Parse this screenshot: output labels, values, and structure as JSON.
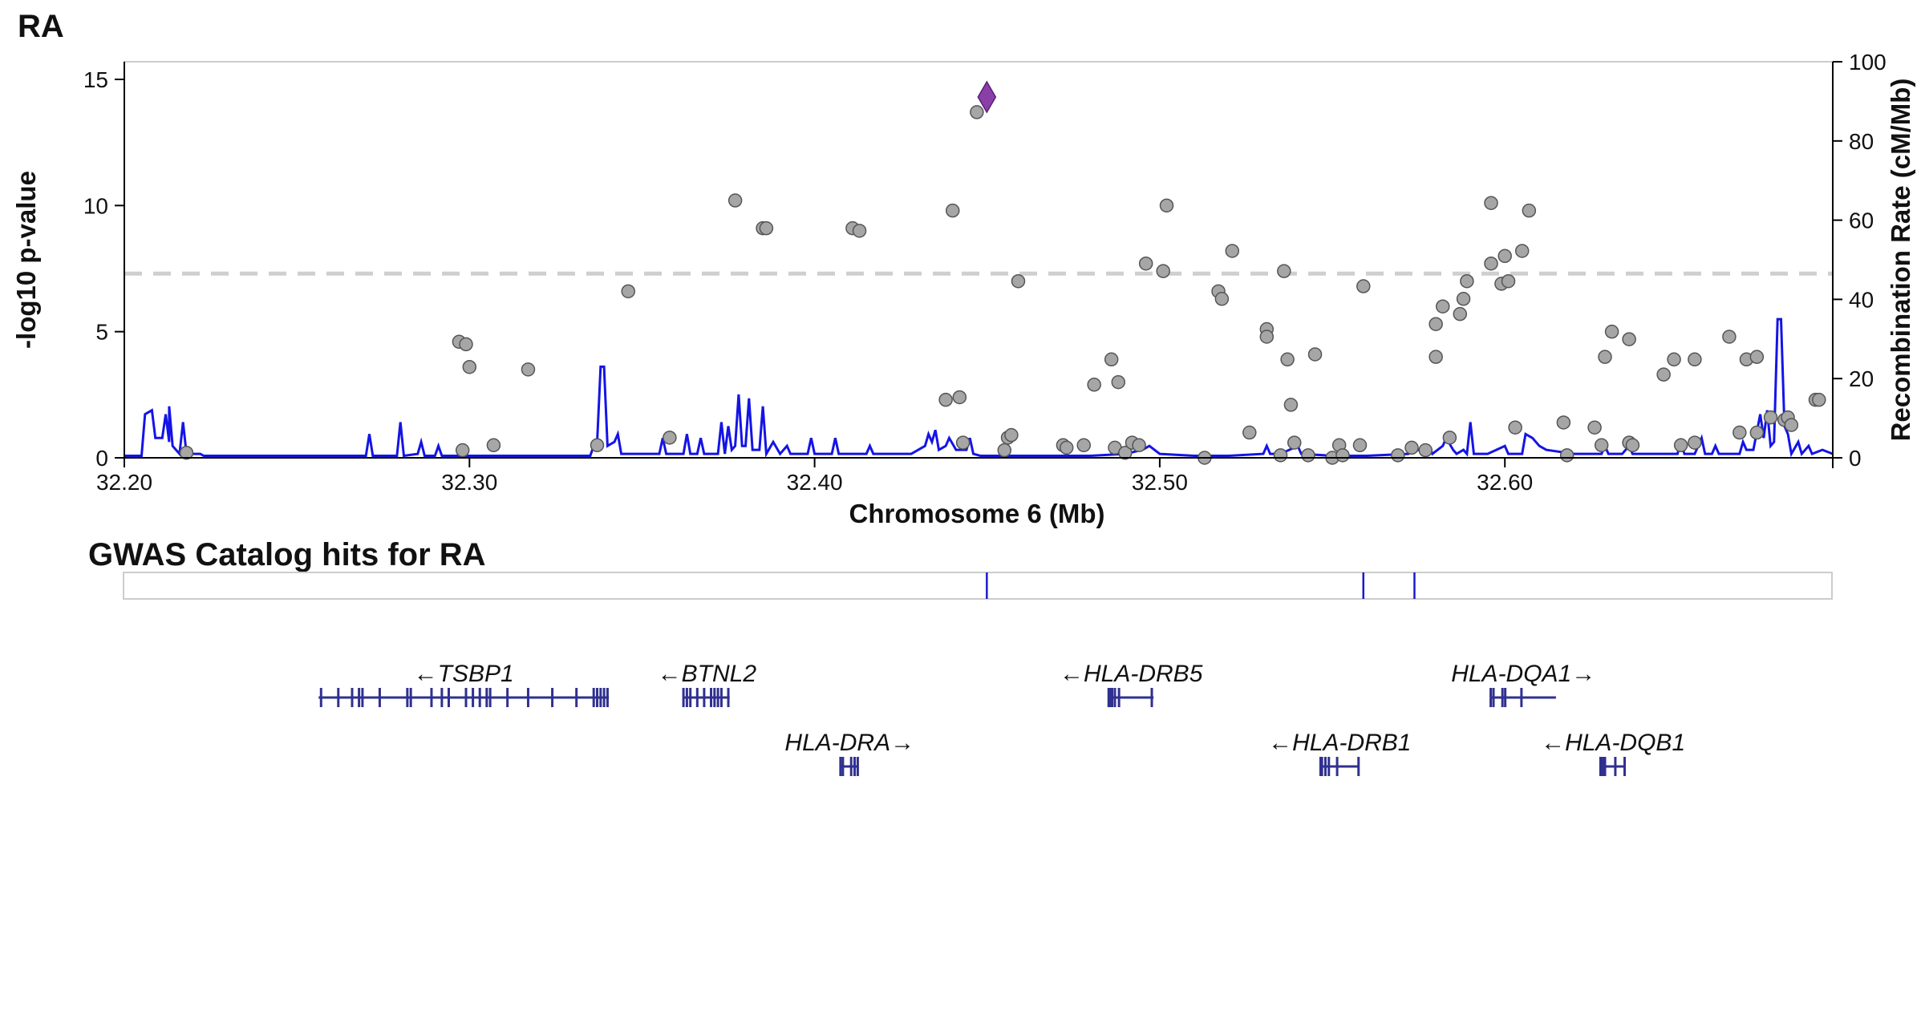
{
  "chart_data": {
    "type": "scatter",
    "title": "RA",
    "xlabel": "Chromosome 6 (Mb)",
    "ylabel": "-log10 p-value",
    "y2label": "Recombination Rate (cM/Mb)",
    "xlim": [
      32.2,
      32.695
    ],
    "ylim": [
      0,
      15.7
    ],
    "y2lim": [
      0,
      100
    ],
    "xticks": [
      "32.20",
      "32.30",
      "32.40",
      "32.50",
      "32.60"
    ],
    "xtick_values": [
      32.2,
      32.3,
      32.4,
      32.5,
      32.6
    ],
    "yticks": [
      "0",
      "5",
      "10",
      "15"
    ],
    "ytick_values": [
      0,
      5,
      10,
      15
    ],
    "y2ticks": [
      "0",
      "20",
      "40",
      "60",
      "80",
      "100"
    ],
    "y2tick_values": [
      0,
      20,
      40,
      60,
      80,
      100
    ],
    "significance_line": 7.3,
    "colors": {
      "point": "#a6a6a6",
      "point_stroke": "#555555",
      "lead": "#8a3fa8",
      "recomb": "#1414e6",
      "threshold": "#cfcfcf",
      "gwas_hit": "#1a1ad0",
      "gene": "#303090"
    },
    "lead_snp": {
      "x": 32.4499,
      "y": 14.3
    },
    "points": [
      {
        "x": 32.218,
        "y": 0.2
      },
      {
        "x": 32.297,
        "y": 4.6
      },
      {
        "x": 32.299,
        "y": 4.5
      },
      {
        "x": 32.3,
        "y": 3.6
      },
      {
        "x": 32.298,
        "y": 0.3
      },
      {
        "x": 32.307,
        "y": 0.5
      },
      {
        "x": 32.317,
        "y": 3.5
      },
      {
        "x": 32.337,
        "y": 0.5
      },
      {
        "x": 32.346,
        "y": 6.6
      },
      {
        "x": 32.358,
        "y": 0.8
      },
      {
        "x": 32.377,
        "y": 10.2
      },
      {
        "x": 32.385,
        "y": 9.1
      },
      {
        "x": 32.386,
        "y": 9.1
      },
      {
        "x": 32.411,
        "y": 9.1
      },
      {
        "x": 32.413,
        "y": 9.0
      },
      {
        "x": 32.438,
        "y": 2.3
      },
      {
        "x": 32.44,
        "y": 9.8
      },
      {
        "x": 32.442,
        "y": 2.4
      },
      {
        "x": 32.443,
        "y": 0.6
      },
      {
        "x": 32.447,
        "y": 13.7
      },
      {
        "x": 32.455,
        "y": 0.3
      },
      {
        "x": 32.456,
        "y": 0.8
      },
      {
        "x": 32.457,
        "y": 0.9
      },
      {
        "x": 32.459,
        "y": 7.0
      },
      {
        "x": 32.472,
        "y": 0.5
      },
      {
        "x": 32.473,
        "y": 0.4
      },
      {
        "x": 32.478,
        "y": 0.5
      },
      {
        "x": 32.481,
        "y": 2.9
      },
      {
        "x": 32.486,
        "y": 3.9
      },
      {
        "x": 32.487,
        "y": 0.4
      },
      {
        "x": 32.488,
        "y": 3.0
      },
      {
        "x": 32.49,
        "y": 0.2
      },
      {
        "x": 32.492,
        "y": 0.6
      },
      {
        "x": 32.494,
        "y": 0.5
      },
      {
        "x": 32.496,
        "y": 7.7
      },
      {
        "x": 32.501,
        "y": 7.4
      },
      {
        "x": 32.502,
        "y": 10.0
      },
      {
        "x": 32.513,
        "y": 0.0
      },
      {
        "x": 32.517,
        "y": 6.6
      },
      {
        "x": 32.518,
        "y": 6.3
      },
      {
        "x": 32.521,
        "y": 8.2
      },
      {
        "x": 32.526,
        "y": 1.0
      },
      {
        "x": 32.531,
        "y": 5.1
      },
      {
        "x": 32.531,
        "y": 4.8
      },
      {
        "x": 32.535,
        "y": 0.1
      },
      {
        "x": 32.536,
        "y": 7.4
      },
      {
        "x": 32.537,
        "y": 3.9
      },
      {
        "x": 32.538,
        "y": 2.1
      },
      {
        "x": 32.539,
        "y": 0.6
      },
      {
        "x": 32.543,
        "y": 0.1
      },
      {
        "x": 32.545,
        "y": 4.1
      },
      {
        "x": 32.55,
        "y": 0.0
      },
      {
        "x": 32.552,
        "y": 0.5
      },
      {
        "x": 32.553,
        "y": 0.1
      },
      {
        "x": 32.558,
        "y": 0.5
      },
      {
        "x": 32.559,
        "y": 6.8
      },
      {
        "x": 32.569,
        "y": 0.1
      },
      {
        "x": 32.573,
        "y": 0.4
      },
      {
        "x": 32.577,
        "y": 0.3
      },
      {
        "x": 32.58,
        "y": 5.3
      },
      {
        "x": 32.58,
        "y": 4.0
      },
      {
        "x": 32.582,
        "y": 6.0
      },
      {
        "x": 32.584,
        "y": 0.8
      },
      {
        "x": 32.587,
        "y": 5.7
      },
      {
        "x": 32.588,
        "y": 6.3
      },
      {
        "x": 32.589,
        "y": 7.0
      },
      {
        "x": 32.596,
        "y": 10.1
      },
      {
        "x": 32.596,
        "y": 7.7
      },
      {
        "x": 32.599,
        "y": 6.9
      },
      {
        "x": 32.6,
        "y": 8.0
      },
      {
        "x": 32.601,
        "y": 7.0
      },
      {
        "x": 32.603,
        "y": 1.2
      },
      {
        "x": 32.605,
        "y": 8.2
      },
      {
        "x": 32.607,
        "y": 9.8
      },
      {
        "x": 32.617,
        "y": 1.4
      },
      {
        "x": 32.618,
        "y": 0.1
      },
      {
        "x": 32.626,
        "y": 1.2
      },
      {
        "x": 32.628,
        "y": 0.5
      },
      {
        "x": 32.629,
        "y": 4.0
      },
      {
        "x": 32.631,
        "y": 5.0
      },
      {
        "x": 32.636,
        "y": 0.6
      },
      {
        "x": 32.637,
        "y": 0.5
      },
      {
        "x": 32.636,
        "y": 4.7
      },
      {
        "x": 32.646,
        "y": 3.3
      },
      {
        "x": 32.649,
        "y": 3.9
      },
      {
        "x": 32.651,
        "y": 0.5
      },
      {
        "x": 32.655,
        "y": 3.9
      },
      {
        "x": 32.655,
        "y": 0.6
      },
      {
        "x": 32.665,
        "y": 4.8
      },
      {
        "x": 32.668,
        "y": 1.0
      },
      {
        "x": 32.67,
        "y": 3.9
      },
      {
        "x": 32.673,
        "y": 4.0
      },
      {
        "x": 32.673,
        "y": 1.0
      },
      {
        "x": 32.677,
        "y": 1.6
      },
      {
        "x": 32.681,
        "y": 1.5
      },
      {
        "x": 32.682,
        "y": 1.6
      },
      {
        "x": 32.683,
        "y": 1.3
      },
      {
        "x": 32.69,
        "y": 2.3
      },
      {
        "x": 32.691,
        "y": 2.3
      }
    ],
    "recomb_rate": [
      [
        32.2,
        0.5
      ],
      [
        32.205,
        0.5
      ],
      [
        32.206,
        11
      ],
      [
        32.208,
        12
      ],
      [
        32.209,
        5
      ],
      [
        32.211,
        5
      ],
      [
        32.212,
        11
      ],
      [
        32.213,
        4
      ],
      [
        32.213,
        13
      ],
      [
        32.214,
        3
      ],
      [
        32.216,
        1
      ],
      [
        32.217,
        9
      ],
      [
        32.218,
        1
      ],
      [
        32.222,
        1
      ],
      [
        32.223,
        0.5
      ],
      [
        32.24,
        0.5
      ],
      [
        32.27,
        0.5
      ],
      [
        32.271,
        6
      ],
      [
        32.272,
        0.5
      ],
      [
        32.279,
        0.5
      ],
      [
        32.28,
        9
      ],
      [
        32.281,
        0.5
      ],
      [
        32.285,
        1
      ],
      [
        32.286,
        4
      ],
      [
        32.287,
        0.5
      ],
      [
        32.29,
        0.5
      ],
      [
        32.291,
        3
      ],
      [
        32.292,
        0.5
      ],
      [
        32.31,
        0.5
      ],
      [
        32.335,
        0.5
      ],
      [
        32.336,
        3
      ],
      [
        32.337,
        4
      ],
      [
        32.338,
        23
      ],
      [
        32.339,
        23
      ],
      [
        32.34,
        3
      ],
      [
        32.342,
        4
      ],
      [
        32.343,
        6
      ],
      [
        32.344,
        1
      ],
      [
        32.355,
        1
      ],
      [
        32.356,
        5
      ],
      [
        32.357,
        1
      ],
      [
        32.362,
        1
      ],
      [
        32.363,
        6
      ],
      [
        32.364,
        1
      ],
      [
        32.366,
        1
      ],
      [
        32.367,
        5
      ],
      [
        32.368,
        1
      ],
      [
        32.372,
        1
      ],
      [
        32.373,
        9
      ],
      [
        32.374,
        1
      ],
      [
        32.375,
        8
      ],
      [
        32.376,
        2
      ],
      [
        32.377,
        3
      ],
      [
        32.378,
        16
      ],
      [
        32.379,
        3
      ],
      [
        32.38,
        3
      ],
      [
        32.381,
        15
      ],
      [
        32.382,
        2
      ],
      [
        32.384,
        2
      ],
      [
        32.385,
        13
      ],
      [
        32.386,
        1
      ],
      [
        32.388,
        4
      ],
      [
        32.39,
        1
      ],
      [
        32.392,
        3
      ],
      [
        32.393,
        1
      ],
      [
        32.398,
        1
      ],
      [
        32.399,
        5
      ],
      [
        32.4,
        1
      ],
      [
        32.405,
        1
      ],
      [
        32.406,
        5
      ],
      [
        32.407,
        1
      ],
      [
        32.415,
        1
      ],
      [
        32.416,
        3
      ],
      [
        32.417,
        1
      ],
      [
        32.428,
        1
      ],
      [
        32.432,
        3
      ],
      [
        32.433,
        6
      ],
      [
        32.434,
        4
      ],
      [
        32.435,
        7
      ],
      [
        32.436,
        2
      ],
      [
        32.438,
        3
      ],
      [
        32.439,
        5
      ],
      [
        32.441,
        2
      ],
      [
        32.444,
        2
      ],
      [
        32.445,
        5
      ],
      [
        32.446,
        1
      ],
      [
        32.448,
        0.5
      ],
      [
        32.46,
        0.5
      ],
      [
        32.47,
        0.5
      ],
      [
        32.48,
        0.5
      ],
      [
        32.49,
        1
      ],
      [
        32.495,
        2
      ],
      [
        32.497,
        3
      ],
      [
        32.5,
        1
      ],
      [
        32.51,
        0.5
      ],
      [
        32.52,
        0.5
      ],
      [
        32.53,
        1
      ],
      [
        32.531,
        3
      ],
      [
        32.532,
        1
      ],
      [
        32.535,
        1
      ],
      [
        32.54,
        3
      ],
      [
        32.541,
        1
      ],
      [
        32.55,
        0.5
      ],
      [
        32.56,
        0.5
      ],
      [
        32.572,
        1
      ],
      [
        32.575,
        2
      ],
      [
        32.578,
        3
      ],
      [
        32.579,
        1
      ],
      [
        32.582,
        3
      ],
      [
        32.583,
        5
      ],
      [
        32.585,
        2
      ],
      [
        32.586,
        1
      ],
      [
        32.588,
        2
      ],
      [
        32.589,
        1
      ],
      [
        32.59,
        9
      ],
      [
        32.591,
        1
      ],
      [
        32.595,
        1
      ],
      [
        32.6,
        3
      ],
      [
        32.601,
        1
      ],
      [
        32.605,
        1
      ],
      [
        32.606,
        6
      ],
      [
        32.608,
        5
      ],
      [
        32.61,
        3
      ],
      [
        32.612,
        2
      ],
      [
        32.62,
        1
      ],
      [
        32.628,
        1
      ],
      [
        32.629,
        3
      ],
      [
        32.63,
        1
      ],
      [
        32.634,
        1
      ],
      [
        32.636,
        3
      ],
      [
        32.637,
        1
      ],
      [
        32.65,
        1
      ],
      [
        32.651,
        4
      ],
      [
        32.652,
        1
      ],
      [
        32.655,
        1
      ],
      [
        32.657,
        5
      ],
      [
        32.658,
        1
      ],
      [
        32.66,
        1
      ],
      [
        32.661,
        3
      ],
      [
        32.662,
        1
      ],
      [
        32.668,
        1
      ],
      [
        32.669,
        4
      ],
      [
        32.67,
        2
      ],
      [
        32.672,
        2
      ],
      [
        32.674,
        11
      ],
      [
        32.675,
        5
      ],
      [
        32.676,
        12
      ],
      [
        32.677,
        3
      ],
      [
        32.678,
        4
      ],
      [
        32.679,
        35
      ],
      [
        32.68,
        35
      ],
      [
        32.681,
        8
      ],
      [
        32.682,
        6
      ],
      [
        32.683,
        1
      ],
      [
        32.685,
        4
      ],
      [
        32.686,
        1
      ],
      [
        32.688,
        3
      ],
      [
        32.689,
        1
      ],
      [
        32.692,
        2
      ],
      [
        32.695,
        1
      ]
    ]
  },
  "gwas_panel": {
    "title": "GWAS Catalog hits for RA",
    "hits": [
      32.4499,
      32.559,
      32.5738
    ]
  },
  "genes": [
    {
      "label": "←TSBP1",
      "start": 32.2563,
      "end": 32.3404,
      "row": 0,
      "exons": [
        32.257,
        32.262,
        32.266,
        32.268,
        32.269,
        32.274,
        32.282,
        32.283,
        32.289,
        32.292,
        32.294,
        32.299,
        32.301,
        32.303,
        32.305,
        32.306,
        32.311,
        32.317,
        32.324,
        32.331,
        32.336,
        32.337,
        32.338,
        32.339,
        32.34
      ]
    },
    {
      "label": "←BTNL2",
      "start": 32.3622,
      "end": 32.3754,
      "row": 0,
      "exons": [
        32.362,
        32.363,
        32.364,
        32.366,
        32.368,
        32.37,
        32.371,
        32.372,
        32.373,
        32.375
      ]
    },
    {
      "label": "←HLA-DRB5",
      "start": 32.4852,
      "end": 32.4982,
      "row": 0,
      "exons": [
        32.4852,
        32.4857,
        32.4862,
        32.487,
        32.4882,
        32.4977
      ]
    },
    {
      "label": "HLA-DQA1→",
      "start": 32.5959,
      "end": 32.6148,
      "row": 0,
      "exons": [
        32.5959,
        32.5967,
        32.5993,
        32.6001,
        32.6048
      ]
    },
    {
      "label": "HLA-DRA→",
      "start": 32.4075,
      "end": 32.4128,
      "row": 1,
      "exons": [
        32.4075,
        32.4082,
        32.4106,
        32.4116,
        32.4125
      ]
    },
    {
      "label": "←HLA-DRB1",
      "start": 32.5465,
      "end": 32.5578,
      "row": 1,
      "exons": [
        32.5466,
        32.547,
        32.548,
        32.549,
        32.5514,
        32.5576
      ]
    },
    {
      "label": "←HLA-DQB1",
      "start": 32.6277,
      "end": 32.635,
      "row": 1,
      "exons": [
        32.6277,
        32.6281,
        32.6285,
        32.629,
        32.632,
        32.6347
      ]
    }
  ]
}
